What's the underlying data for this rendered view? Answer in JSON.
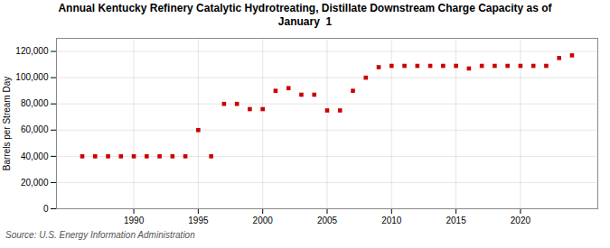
{
  "chart_data": {
    "type": "scatter",
    "title": "Annual Kentucky Refinery Catalytic Hydrotreating, Distillate Downstream Charge Capacity as of\nJanuary  1",
    "ylabel": "Barrels per Stream Day",
    "source": "Source: U.S. Energy Information Administration",
    "x": [
      1986,
      1987,
      1988,
      1989,
      1990,
      1991,
      1992,
      1993,
      1994,
      1995,
      1996,
      1997,
      1998,
      1999,
      2000,
      2001,
      2002,
      2003,
      2004,
      2005,
      2006,
      2007,
      2008,
      2009,
      2010,
      2011,
      2012,
      2013,
      2014,
      2015,
      2016,
      2017,
      2018,
      2019,
      2020,
      2021,
      2022,
      2023,
      2024
    ],
    "values": [
      40000,
      40000,
      40000,
      40000,
      40000,
      40000,
      40000,
      40000,
      40000,
      60000,
      40000,
      80000,
      80000,
      76000,
      76000,
      90000,
      92000,
      87000,
      87000,
      75000,
      75000,
      90000,
      100000,
      108000,
      109000,
      109000,
      109000,
      109000,
      109000,
      109000,
      107000,
      109000,
      109000,
      109000,
      109000,
      109000,
      109000,
      115000,
      117000
    ],
    "color": "#cc0000",
    "marker": "square",
    "xlim": [
      1984,
      2026
    ],
    "xticks": [
      1990,
      1995,
      2000,
      2005,
      2010,
      2015,
      2020
    ],
    "ylim": [
      0,
      130000
    ],
    "yticks": [
      0,
      {
        "value": 20000,
        "label": "20,000"
      },
      {
        "value": 40000,
        "label": "40,000"
      },
      {
        "value": 60000,
        "label": "60,000"
      },
      {
        "value": 80000,
        "label": "80,000"
      },
      {
        "value": 100000,
        "label": "100,000"
      },
      {
        "value": 120000,
        "label": "120,000"
      }
    ],
    "grid": true
  }
}
